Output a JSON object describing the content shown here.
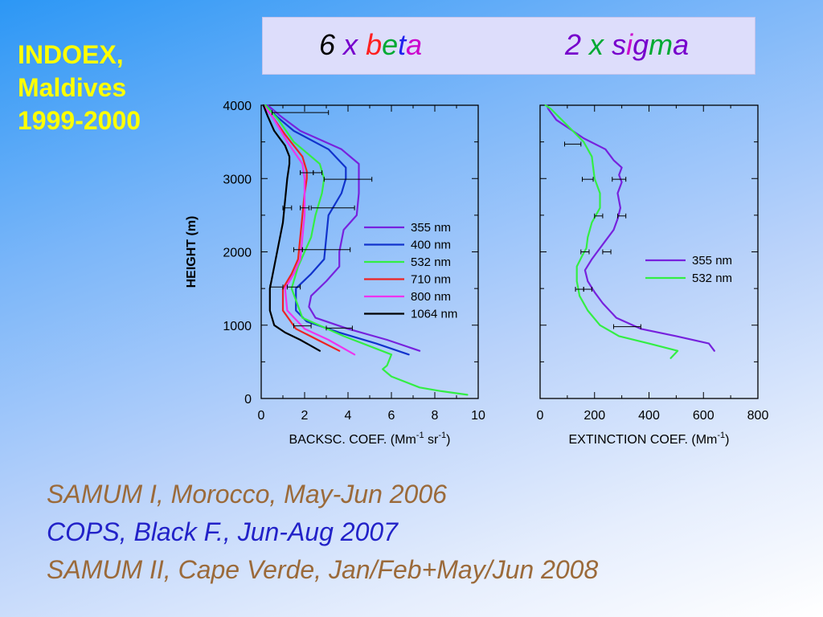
{
  "slide": {
    "title_lines": [
      "INDOEX,",
      "Maldives",
      "1999-2000"
    ],
    "title_color": "#ffff00",
    "banner": {
      "beta": {
        "parts": [
          {
            "text": "6",
            "color": "#000000"
          },
          {
            "text": " ",
            "color": "#000000"
          },
          {
            "text": "x",
            "color": "#7700cc"
          },
          {
            "text": " ",
            "color": "#000000"
          },
          {
            "text": "b",
            "color": "#ff2020"
          },
          {
            "text": "e",
            "color": "#00aa33"
          },
          {
            "text": "t",
            "color": "#2222ee"
          },
          {
            "text": "a",
            "color": "#cc00cc"
          }
        ]
      },
      "sigma": {
        "parts": [
          {
            "text": "2",
            "color": "#7700cc"
          },
          {
            "text": " ",
            "color": "#000000"
          },
          {
            "text": "x",
            "color": "#00aa33"
          },
          {
            "text": " ",
            "color": "#000000"
          },
          {
            "text": "s",
            "color": "#7700cc"
          },
          {
            "text": "i",
            "color": "#cc00cc"
          },
          {
            "text": "g",
            "color": "#7700cc"
          },
          {
            "text": "m",
            "color": "#00aa33"
          },
          {
            "text": "a",
            "color": "#7700cc"
          }
        ]
      }
    },
    "campaigns": [
      {
        "text": "SAMUM I, Morocco, May-Jun 2006",
        "color": "#9b6a3a"
      },
      {
        "text": "COPS, Black F., Jun-Aug 2007",
        "color": "#2222c8"
      },
      {
        "text": "SAMUM II, Cape Verde, Jan/Feb+May/Jun 2008",
        "color": "#9b6a3a"
      }
    ]
  },
  "chart_data": [
    {
      "type": "line",
      "xlabel": "BACKSC. COEF. (Mm",
      "xlabel_sup1": "-1",
      "xlabel_mid": " sr",
      "xlabel_sup2": "-1",
      "xlabel_end": ")",
      "ylabel": "HEIGHT (m)",
      "xlim": [
        0,
        10
      ],
      "ylim": [
        0,
        4000
      ],
      "xticks": [
        "0",
        "2",
        "4",
        "6",
        "8",
        "10"
      ],
      "yticks": [
        "0",
        "1000",
        "2000",
        "3000",
        "4000"
      ],
      "legend_position": "right",
      "series": [
        {
          "name": "355 nm",
          "color": "#7722dd",
          "x": [
            7.3,
            5.8,
            4.0,
            2.5,
            2.2,
            2.3,
            3.0,
            3.6,
            3.6,
            3.8,
            4.4,
            4.5,
            4.5,
            3.7,
            1.8,
            0.9,
            0.3
          ],
          "y": [
            650,
            800,
            950,
            1100,
            1250,
            1400,
            1600,
            1800,
            2000,
            2300,
            2500,
            2800,
            3200,
            3400,
            3650,
            3850,
            4000
          ]
        },
        {
          "name": "400 nm",
          "color": "#1133cc",
          "x": [
            6.8,
            5.3,
            3.6,
            2.1,
            1.6,
            1.6,
            2.3,
            2.9,
            3.0,
            3.1,
            3.7,
            3.9,
            3.9,
            3.1,
            1.5,
            0.7,
            0.2
          ],
          "y": [
            600,
            750,
            900,
            1050,
            1200,
            1500,
            1700,
            1900,
            2200,
            2500,
            2800,
            3000,
            3150,
            3400,
            3650,
            3850,
            4000
          ]
        },
        {
          "name": "532 nm",
          "color": "#33ee44",
          "x": [
            9.5,
            8.3,
            7.3,
            6.0,
            5.8,
            5.6,
            5.8,
            6.0,
            3.8,
            1.9,
            1.4,
            1.7,
            2.0,
            2.3,
            2.5,
            2.8,
            2.9,
            2.7,
            1.5,
            0.8,
            0.2
          ],
          "y": [
            50,
            100,
            150,
            300,
            350,
            400,
            450,
            600,
            850,
            1100,
            1500,
            1800,
            2000,
            2200,
            2500,
            2800,
            3000,
            3200,
            3500,
            3800,
            4000
          ]
        },
        {
          "name": "710 nm",
          "color": "#ee2222",
          "x": [
            3.6,
            2.6,
            1.6,
            1.0,
            1.0,
            1.4,
            1.7,
            1.8,
            1.9,
            2.0,
            2.1,
            2.1,
            1.9,
            1.1,
            0.5,
            0.1
          ],
          "y": [
            650,
            800,
            950,
            1200,
            1500,
            1700,
            1900,
            2200,
            2500,
            2800,
            3000,
            3100,
            3300,
            3600,
            3850,
            4000
          ]
        },
        {
          "name": "800 nm",
          "color": "#ee33ee",
          "x": [
            4.3,
            3.1,
            2.0,
            1.2,
            1.1,
            1.5,
            1.8,
            1.9,
            2.0,
            2.0,
            2.0,
            1.9,
            1.2,
            0.5,
            0.1
          ],
          "y": [
            600,
            800,
            950,
            1200,
            1500,
            1700,
            1900,
            2200,
            2500,
            2800,
            3000,
            3200,
            3500,
            3850,
            4000
          ]
        },
        {
          "name": "1064 nm",
          "color": "#000000",
          "x": [
            2.7,
            1.8,
            1.1,
            0.6,
            0.4,
            0.4,
            0.6,
            0.8,
            1.0,
            1.1,
            1.2,
            1.3,
            1.3,
            1.1,
            0.6,
            0.3,
            0.1
          ],
          "y": [
            650,
            800,
            900,
            1000,
            1200,
            1500,
            1800,
            2100,
            2400,
            2700,
            3000,
            3200,
            3300,
            3450,
            3650,
            3850,
            4000
          ]
        }
      ],
      "error_bars": [
        {
          "x": 1.8,
          "y": 3900,
          "err": 1.3
        },
        {
          "x": 2.1,
          "y": 3080,
          "err": 0.3
        },
        {
          "x": 2.6,
          "y": 3080,
          "err": 0.2
        },
        {
          "x": 4.0,
          "y": 2990,
          "err": 1.1
        },
        {
          "x": 1.2,
          "y": 2600,
          "err": 0.2
        },
        {
          "x": 2.0,
          "y": 2600,
          "err": 0.2
        },
        {
          "x": 3.3,
          "y": 2600,
          "err": 1.0
        },
        {
          "x": 1.7,
          "y": 2030,
          "err": 0.2
        },
        {
          "x": 3.0,
          "y": 2030,
          "err": 1.1
        },
        {
          "x": 0.7,
          "y": 1520,
          "err": 0.3
        },
        {
          "x": 1.5,
          "y": 1520,
          "err": 0.3
        },
        {
          "x": 1.9,
          "y": 990,
          "err": 0.4
        },
        {
          "x": 3.6,
          "y": 960,
          "err": 0.6
        }
      ]
    },
    {
      "type": "line",
      "xlabel": "EXTINCTION COEF. (Mm",
      "xlabel_sup1": "-1",
      "xlabel_end": ")",
      "xlim": [
        0,
        800
      ],
      "ylim": [
        0,
        4000
      ],
      "xticks": [
        "0",
        "200",
        "400",
        "600",
        "800"
      ],
      "legend_position": "right",
      "series": [
        {
          "name": "355 nm",
          "color": "#7722dd",
          "x": [
            640,
            620,
            500,
            370,
            280,
            230,
            200,
            175,
            165,
            190,
            210,
            240,
            270,
            285,
            295,
            285,
            300,
            290,
            300,
            270,
            240,
            160,
            120,
            60,
            30,
            25
          ],
          "y": [
            650,
            750,
            850,
            950,
            1100,
            1300,
            1450,
            1600,
            1750,
            1900,
            2000,
            2150,
            2300,
            2450,
            2600,
            2800,
            2950,
            3050,
            3150,
            3250,
            3400,
            3550,
            3650,
            3800,
            3950,
            4000
          ]
        },
        {
          "name": "532 nm",
          "color": "#33ee44",
          "x": [
            480,
            505,
            400,
            290,
            220,
            175,
            145,
            135,
            135,
            155,
            170,
            175,
            190,
            220,
            220,
            200,
            195,
            190,
            175,
            160,
            120,
            80,
            40,
            20
          ],
          "y": [
            550,
            650,
            750,
            850,
            1000,
            1200,
            1400,
            1600,
            1800,
            1950,
            2050,
            2200,
            2400,
            2600,
            2800,
            3000,
            3150,
            3300,
            3400,
            3500,
            3650,
            3800,
            3950,
            4000
          ]
        }
      ],
      "error_bars": [
        {
          "x": 120,
          "y": 3470,
          "err": 30
        },
        {
          "x": 175,
          "y": 2990,
          "err": 20
        },
        {
          "x": 290,
          "y": 2990,
          "err": 25
        },
        {
          "x": 215,
          "y": 2490,
          "err": 15
        },
        {
          "x": 300,
          "y": 2490,
          "err": 15
        },
        {
          "x": 165,
          "y": 2000,
          "err": 15
        },
        {
          "x": 245,
          "y": 2000,
          "err": 15
        },
        {
          "x": 145,
          "y": 1490,
          "err": 15
        },
        {
          "x": 175,
          "y": 1490,
          "err": 15
        },
        {
          "x": 320,
          "y": 980,
          "err": 50
        }
      ]
    }
  ]
}
